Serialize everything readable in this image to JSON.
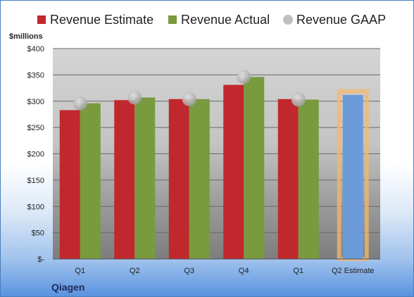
{
  "chart_data": {
    "type": "bar",
    "unit_label": "$millions",
    "company": "Qiagen",
    "categories": [
      "Q1",
      "Q2",
      "Q3",
      "Q4",
      "Q1",
      "Q2 Estimate"
    ],
    "y_tick_labels": [
      "$-",
      "$50",
      "$100",
      "$150",
      "$200",
      "$250",
      "$300",
      "$350",
      "$400"
    ],
    "ylim": [
      0,
      400
    ],
    "grid": true,
    "legend_position": "top",
    "series": [
      {
        "name": "Revenue Estimate",
        "color": "#c0282d",
        "values": [
          283,
          302,
          304,
          331,
          304,
          null
        ]
      },
      {
        "name": "Revenue Actual",
        "color": "#7a9a3e",
        "values": [
          296,
          307,
          304,
          346,
          303,
          312
        ]
      },
      {
        "name": "Revenue GAAP",
        "color": "#bfbfbf",
        "marker": "circle",
        "values": [
          296,
          307,
          304,
          346,
          303,
          null
        ]
      }
    ],
    "estimate_bar": {
      "category_index": 5,
      "color": "#6d9bd9",
      "highlight": "#f2b870"
    }
  }
}
